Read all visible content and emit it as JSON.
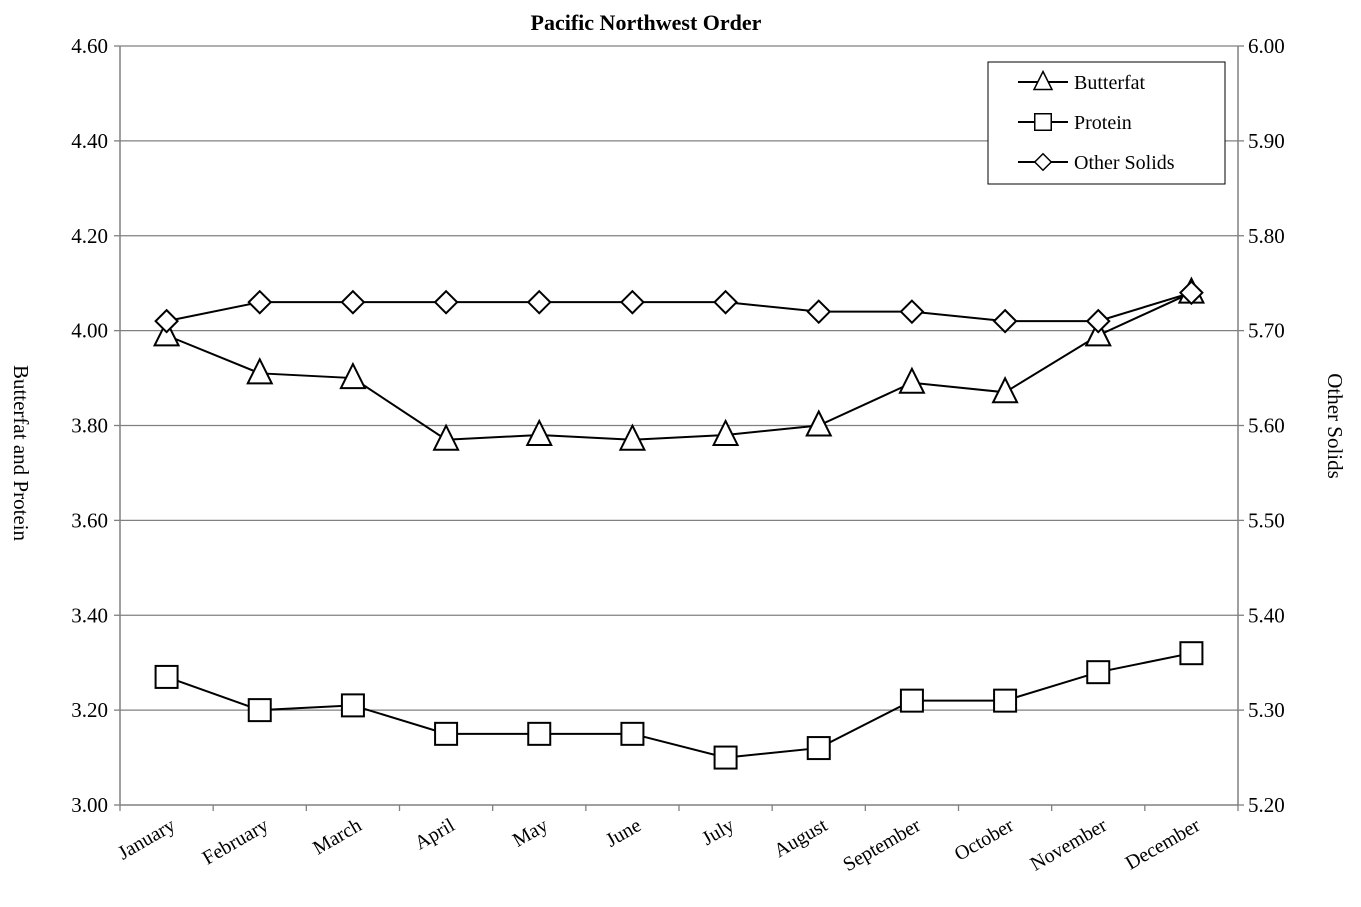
{
  "chart_data": {
    "type": "line",
    "title": "Pacific Northwest Order",
    "categories": [
      "January",
      "February",
      "March",
      "April",
      "May",
      "June",
      "July",
      "August",
      "September",
      "October",
      "November",
      "December"
    ],
    "left_axis": {
      "label": "Butterfat and Protein",
      "min": 3.0,
      "max": 4.6,
      "step": 0.2,
      "ticks": [
        "3.00",
        "3.20",
        "3.40",
        "3.60",
        "3.80",
        "4.00",
        "4.20",
        "4.40",
        "4.60"
      ]
    },
    "right_axis": {
      "label": "Other Solids",
      "min": 5.2,
      "max": 6.0,
      "step": 0.1,
      "ticks": [
        "5.20",
        "5.30",
        "5.40",
        "5.50",
        "5.60",
        "5.70",
        "5.80",
        "5.90",
        "6.00"
      ]
    },
    "grid": true,
    "legend_position": "top-right",
    "series": [
      {
        "name": "Butterfat",
        "axis": "left",
        "marker": "triangle",
        "values": [
          3.99,
          3.91,
          3.9,
          3.77,
          3.78,
          3.77,
          3.78,
          3.8,
          3.89,
          3.87,
          3.99,
          4.08
        ]
      },
      {
        "name": "Protein",
        "axis": "left",
        "marker": "square",
        "values": [
          3.27,
          3.2,
          3.21,
          3.15,
          3.15,
          3.15,
          3.1,
          3.12,
          3.22,
          3.22,
          3.28,
          3.32
        ]
      },
      {
        "name": "Other Solids",
        "axis": "right",
        "marker": "diamond",
        "values": [
          5.71,
          5.73,
          5.73,
          5.73,
          5.73,
          5.73,
          5.73,
          5.72,
          5.72,
          5.71,
          5.71,
          5.74
        ]
      }
    ]
  }
}
